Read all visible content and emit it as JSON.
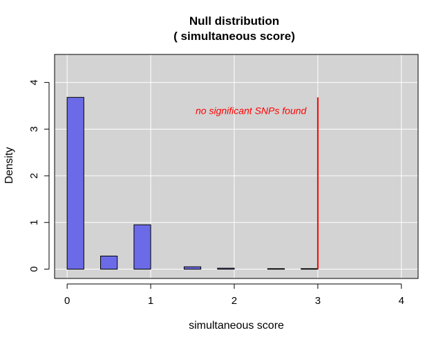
{
  "chart_data": {
    "type": "bar",
    "title_line1": "Null distribution",
    "title_line2": "( simultaneous score)",
    "xlabel": "simultaneous score",
    "ylabel": "Density",
    "xlim": [
      -0.15,
      4.2
    ],
    "ylim": [
      -0.2,
      4.6
    ],
    "x_ticks": [
      0,
      1,
      2,
      3,
      4
    ],
    "y_ticks": [
      0,
      1,
      2,
      3,
      4
    ],
    "grid": true,
    "background_color": "#d3d3d3",
    "grid_color": "#ffffff",
    "bar_color": "#6b6be8",
    "bar_edge_color": "#000000",
    "bins": [
      {
        "x0": 0.0,
        "x1": 0.2,
        "density": 3.68
      },
      {
        "x0": 0.4,
        "x1": 0.6,
        "density": 0.28
      },
      {
        "x0": 0.8,
        "x1": 1.0,
        "density": 0.95
      },
      {
        "x0": 1.4,
        "x1": 1.6,
        "density": 0.05
      },
      {
        "x0": 1.8,
        "x1": 2.0,
        "density": 0.02
      },
      {
        "x0": 2.4,
        "x1": 2.6,
        "density": 0.01
      },
      {
        "x0": 2.8,
        "x1": 3.0,
        "density": 0.01
      }
    ],
    "observed_line": {
      "x": 3.0,
      "y0": 0,
      "y1": 3.68,
      "color": "#ff0000"
    },
    "annotation": {
      "text": "no significant SNPs found",
      "x": 2.2,
      "y": 3.4,
      "color": "#ff0000"
    }
  }
}
